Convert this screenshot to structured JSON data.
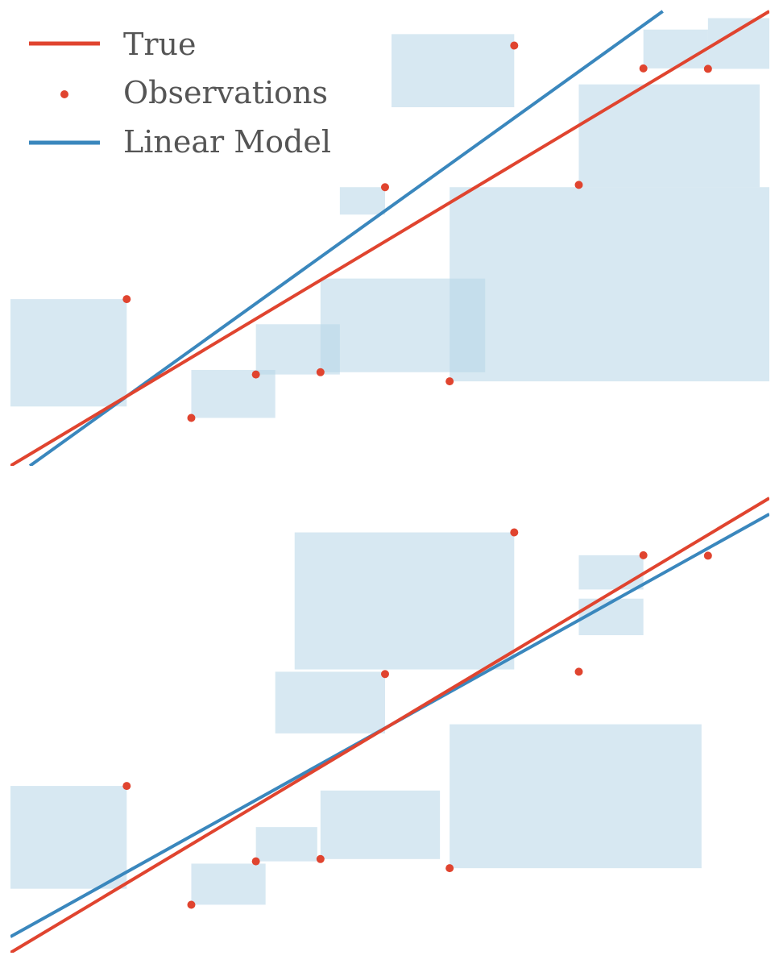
{
  "colors": {
    "true_line": "#e0442f",
    "observations": "#e0442f",
    "linear_model": "#3a87bd",
    "residual_box": "#b7d6e8"
  },
  "legend": {
    "true_label": "True",
    "observations_label": "Observations",
    "linear_model_label": "Linear Model"
  },
  "chart_data": [
    {
      "type": "scatter",
      "title": "",
      "xlabel": "",
      "ylabel": "",
      "axes_visible": false,
      "grid": false,
      "legend_position": "top-left",
      "xlim": [
        0.0,
        11.75
      ],
      "ylim": [
        -3.4,
        6.55
      ],
      "series": [
        {
          "name": "True",
          "kind": "line",
          "x": [
            0.0,
            11.75
          ],
          "y": [
            -3.4,
            6.55
          ]
        },
        {
          "name": "Observations",
          "kind": "points",
          "x": [
            1.8,
            2.8,
            3.8,
            4.8,
            5.8,
            6.8,
            7.8,
            8.8,
            9.8,
            10.8
          ],
          "y": [
            0.25,
            -2.35,
            -1.4,
            -1.35,
            2.7,
            -1.55,
            5.8,
            2.75,
            5.3,
            5.29
          ]
        },
        {
          "name": "Linear Model",
          "kind": "line",
          "x": [
            0.3,
            10.1
          ],
          "y": [
            -3.4,
            6.55
          ]
        }
      ],
      "residual_squares": [
        {
          "x": [
            0.0,
            1.8
          ],
          "y": [
            -2.1,
            0.25
          ]
        },
        {
          "x": [
            2.8,
            4.1
          ],
          "y": [
            -2.35,
            -1.3
          ]
        },
        {
          "x": [
            3.8,
            5.1
          ],
          "y": [
            -1.4,
            -0.3
          ]
        },
        {
          "x": [
            4.8,
            7.35
          ],
          "y": [
            -1.35,
            0.7
          ]
        },
        {
          "x": [
            5.1,
            5.8
          ],
          "y": [
            2.1,
            2.7
          ]
        },
        {
          "x": [
            5.9,
            7.8
          ],
          "y": [
            4.45,
            6.05
          ]
        },
        {
          "x": [
            6.8,
            11.75
          ],
          "y": [
            -1.55,
            2.7
          ]
        },
        {
          "x": [
            8.8,
            11.6
          ],
          "y": [
            2.7,
            4.95
          ]
        },
        {
          "x": [
            9.8,
            10.8
          ],
          "y": [
            5.3,
            6.15
          ]
        },
        {
          "x": [
            10.8,
            11.75
          ],
          "y": [
            5.29,
            6.4
          ]
        }
      ]
    },
    {
      "type": "scatter",
      "title": "",
      "xlabel": "",
      "ylabel": "",
      "axes_visible": false,
      "grid": false,
      "xlim": [
        0.0,
        11.75
      ],
      "ylim": [
        -3.4,
        6.55
      ],
      "series": [
        {
          "name": "True",
          "kind": "line",
          "x": [
            0.0,
            11.75
          ],
          "y": [
            -3.4,
            6.55
          ]
        },
        {
          "name": "Observations",
          "kind": "points",
          "x": [
            1.8,
            2.8,
            3.8,
            4.8,
            5.8,
            6.8,
            7.8,
            8.8,
            9.8,
            10.8
          ],
          "y": [
            0.25,
            -2.35,
            -1.4,
            -1.35,
            2.7,
            -1.55,
            5.8,
            2.75,
            5.3,
            5.29
          ]
        },
        {
          "name": "Linear Model",
          "kind": "line",
          "x": [
            0.0,
            11.75
          ],
          "y": [
            -3.05,
            6.2
          ]
        }
      ],
      "residual_squares": [
        {
          "x": [
            0.0,
            1.8
          ],
          "y": [
            -2.0,
            0.25
          ]
        },
        {
          "x": [
            2.8,
            3.95
          ],
          "y": [
            -2.35,
            -1.45
          ]
        },
        {
          "x": [
            3.8,
            4.75
          ],
          "y": [
            -1.4,
            -0.65
          ]
        },
        {
          "x": [
            4.8,
            6.65
          ],
          "y": [
            -1.35,
            0.15
          ]
        },
        {
          "x": [
            4.1,
            5.8
          ],
          "y": [
            1.4,
            2.75
          ]
        },
        {
          "x": [
            4.4,
            7.8
          ],
          "y": [
            2.8,
            5.8
          ]
        },
        {
          "x": [
            6.8,
            10.7
          ],
          "y": [
            -1.55,
            1.6
          ]
        },
        {
          "x": [
            8.8,
            9.8
          ],
          "y": [
            3.55,
            4.35
          ]
        },
        {
          "x": [
            8.8,
            9.8
          ],
          "y": [
            4.55,
            5.3
          ]
        }
      ]
    }
  ]
}
